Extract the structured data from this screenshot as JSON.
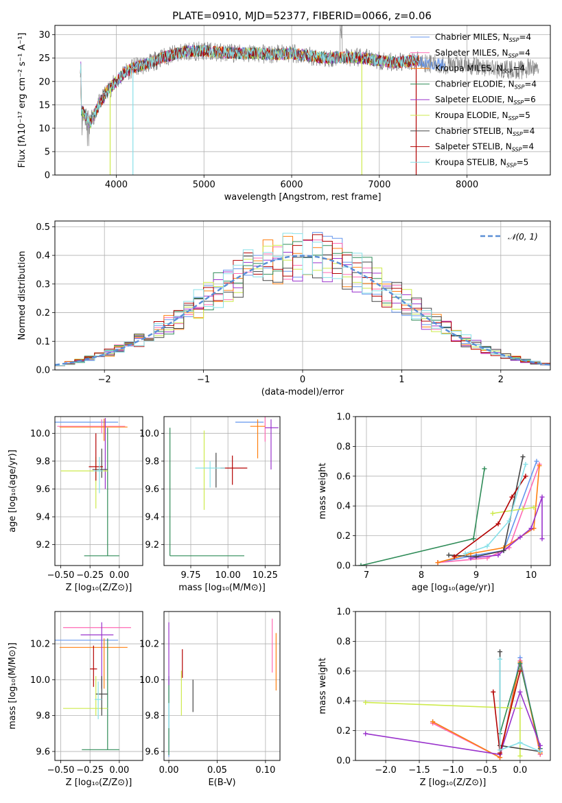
{
  "colors": [
    "#6495ed",
    "#ff69b4",
    "#ff7f0e",
    "#2e8b57",
    "#9932cc",
    "#cdea4b",
    "#444444",
    "#b30000",
    "#87e0e8"
  ],
  "chart_data": [
    {
      "id": "spectrum",
      "type": "line",
      "title": "PLATE=0910, MJD=52377, FIBERID=0066, z=0.06",
      "xlabel": "wavelength [Angstrom, rest frame]",
      "ylabel": "Flux [fλ10⁻¹⁷ erg cm⁻² s⁻¹ A⁻¹]",
      "xlim": [
        3300,
        8950
      ],
      "ylim": [
        0,
        32
      ],
      "xticks": [
        4000,
        5000,
        6000,
        7000,
        8000
      ],
      "yticks": [
        0,
        5,
        10,
        15,
        20,
        25,
        30
      ],
      "legend_position": "top-right",
      "data_color": "#808080",
      "data": {
        "x": [
          3600,
          3700,
          3800,
          3900,
          4000,
          4100,
          4200,
          4300,
          4400,
          4500,
          4600,
          4700,
          4800,
          4900,
          5000,
          5200,
          5400,
          5600,
          5800,
          6000,
          6200,
          6400,
          6600,
          6800,
          7000,
          7200,
          7400,
          7600,
          7800,
          8000,
          8200,
          8400,
          8600,
          8800
        ],
        "y": [
          14,
          11,
          15,
          18,
          20,
          22,
          23,
          23.5,
          24,
          25,
          25.5,
          26,
          26.5,
          26.5,
          26.5,
          26.2,
          26,
          26,
          25.8,
          26,
          25.5,
          25,
          25.2,
          25,
          24.5,
          24,
          24.5,
          23.8,
          23.5,
          23.5,
          23,
          22.5,
          22.5,
          23
        ]
      },
      "series": [
        {
          "name": "Chabrier MILES, N<sub>SSP</sub>=4",
          "label": "Chabrier MILES, N",
          "sub": "SSP",
          "suffix": "=4"
        },
        {
          "name": "Salpeter MILES, N<sub>SSP</sub>=4",
          "label": "Salpeter MILES, N",
          "sub": "SSP",
          "suffix": "=4"
        },
        {
          "name": "Kroupa MILES, N<sub>SSP</sub>=4",
          "label": "Kroupa MILES, N",
          "sub": "SSP",
          "suffix": "=4"
        },
        {
          "name": "Chabrier ELODIE, N<sub>SSP</sub>=4",
          "label": "Chabrier ELODIE, N",
          "sub": "SSP",
          "suffix": "=4"
        },
        {
          "name": "Salpeter ELODIE, N<sub>SSP</sub>=6",
          "label": "Salpeter ELODIE, N",
          "sub": "SSP",
          "suffix": "=6"
        },
        {
          "name": "Kroupa ELODIE, N<sub>SSP</sub>=5",
          "label": "Kroupa ELODIE, N",
          "sub": "SSP",
          "suffix": "=5"
        },
        {
          "name": "Chabrier STELIB, N<sub>SSP</sub>=4",
          "label": "Chabrier STELIB, N",
          "sub": "SSP",
          "suffix": "=4"
        },
        {
          "name": "Salpeter STELIB, N<sub>SSP</sub>=4",
          "label": "Salpeter STELIB, N",
          "sub": "SSP",
          "suffix": "=4"
        },
        {
          "name": "Kroupa STELIB, N<sub>SSP</sub>=5",
          "label": "Kroupa STELIB, N",
          "sub": "SSP",
          "suffix": "=5"
        }
      ],
      "sharp_drops": [
        {
          "x": 3930,
          "series": 5
        },
        {
          "x": 4190,
          "series": 8
        },
        {
          "x": 6800,
          "series": 5
        },
        {
          "x": 7420,
          "series": 7
        }
      ]
    },
    {
      "id": "residuals",
      "type": "histogram",
      "xlabel": "(data-model)/error",
      "ylabel": "Normed distribution",
      "xlim": [
        -2.5,
        2.5
      ],
      "ylim": [
        0,
        0.52
      ],
      "xticks": [
        -2,
        -1,
        0,
        1,
        2
      ],
      "yticks": [
        0.0,
        0.1,
        0.2,
        0.3,
        0.4,
        0.5
      ],
      "legend": "𝒩(0, 1)",
      "normal_color": "#5b8fd6",
      "bin_width": 0.1,
      "bin_start": -2.5
    },
    {
      "id": "age_vs_Z",
      "type": "errorbar",
      "xlabel": "Z [log₁₀(Z/Z⊙)]",
      "ylabel": "age  [log₁₀(age/yr)]",
      "xlim": [
        -0.55,
        0.2
      ],
      "ylim": [
        9.05,
        10.12
      ],
      "xticks": [
        -0.5,
        -0.25,
        0.0
      ],
      "xticklabels": [
        "−0.50",
        "−0.25",
        "0.00"
      ],
      "yticks": [
        9.2,
        9.4,
        9.6,
        9.8,
        10.0
      ],
      "points": [
        {
          "x": -0.15,
          "y": 10.08,
          "xerr": [
            0.5,
            0.14
          ],
          "yerr": [
            0.0,
            0.0
          ]
        },
        {
          "x": -0.15,
          "y": 10.05,
          "xerr": [
            0.38,
            0.2
          ],
          "yerr": [
            0.05,
            0.05
          ]
        },
        {
          "x": -0.13,
          "y": 10.045,
          "xerr": [
            0.38,
            0.2
          ],
          "yerr": [
            0.1,
            0.06
          ]
        },
        {
          "x": -0.1,
          "y": 9.12,
          "xerr": [
            0.2,
            0.1
          ],
          "yerr": [
            0.0,
            0.92
          ]
        },
        {
          "x": -0.12,
          "y": 9.75,
          "xerr": [
            0.0,
            0.0
          ],
          "yerr": [
            0.15,
            0.36
          ]
        },
        {
          "x": -0.2,
          "y": 9.73,
          "xerr": [
            0.3,
            0.1
          ],
          "yerr": [
            0.27,
            0.1
          ]
        },
        {
          "x": -0.15,
          "y": 9.74,
          "xerr": [
            0.08,
            0.05
          ],
          "yerr": [
            0.06,
            0.15
          ]
        },
        {
          "x": -0.2,
          "y": 9.76,
          "xerr": [
            0.06,
            0.06
          ],
          "yerr": [
            0.1,
            0.24
          ]
        },
        {
          "x": -0.17,
          "y": 9.73,
          "xerr": [
            0.05,
            0.03
          ],
          "yerr": [
            0.16,
            0.1
          ]
        }
      ]
    },
    {
      "id": "age_vs_mass",
      "type": "errorbar",
      "xlabel": "mass [log₁₀(M/M⊙)]",
      "xlim": [
        9.57,
        10.35
      ],
      "ylim": [
        9.05,
        10.12
      ],
      "xticks": [
        9.75,
        10.0,
        10.25
      ],
      "xticklabels": [
        "9.75",
        "10.00",
        "10.25"
      ],
      "yticks": [
        9.2,
        9.4,
        9.6,
        9.8,
        10.0
      ],
      "points": [
        {
          "x": 10.17,
          "y": 10.08,
          "xerr": [
            0.12,
            0.07
          ],
          "yerr": [
            0.0,
            0.0
          ]
        },
        {
          "x": 10.25,
          "y": 10.06,
          "xerr": [
            0.0,
            0.0
          ],
          "yerr": [
            0.12,
            0.32
          ]
        },
        {
          "x": 10.2,
          "y": 10.05,
          "xerr": [
            0.05,
            0.05
          ],
          "yerr": [
            0.23,
            0.05
          ]
        },
        {
          "x": 9.61,
          "y": 9.12,
          "xerr": [
            0.0,
            0.5
          ],
          "yerr": [
            0.0,
            0.92
          ]
        },
        {
          "x": 10.29,
          "y": 10.04,
          "xerr": [
            0.04,
            0.05
          ],
          "yerr": [
            0.3,
            0.06
          ]
        },
        {
          "x": 9.84,
          "y": 9.73,
          "xerr": [
            0.0,
            0.0
          ],
          "yerr": [
            0.28,
            0.29
          ]
        },
        {
          "x": 9.92,
          "y": 9.75,
          "xerr": [
            0.0,
            0.0
          ],
          "yerr": [
            0.14,
            0.11
          ]
        },
        {
          "x": 10.03,
          "y": 9.75,
          "xerr": [
            0.08,
            0.1
          ],
          "yerr": [
            0.12,
            0.09
          ]
        },
        {
          "x": 9.88,
          "y": 9.75,
          "xerr": [
            0.1,
            0.1
          ],
          "yerr": [
            0.14,
            0.05
          ]
        }
      ]
    },
    {
      "id": "weight_vs_age",
      "type": "line",
      "xlabel": "age  [log₁₀(age/yr)]",
      "ylabel": "mass weight",
      "xlim": [
        6.8,
        10.35
      ],
      "ylim": [
        0,
        1.0
      ],
      "xticks": [
        7,
        8,
        9,
        10
      ],
      "yticks": [
        0.0,
        0.2,
        0.4,
        0.6,
        0.8,
        1.0
      ],
      "series": [
        {
          "x": [
            8.3,
            9.0,
            9.5,
            10.1
          ],
          "y": [
            0.02,
            0.07,
            0.1,
            0.7
          ]
        },
        {
          "x": [
            8.3,
            9.2,
            9.6,
            10.15
          ],
          "y": [
            0.02,
            0.05,
            0.12,
            0.68
          ]
        },
        {
          "x": [
            8.3,
            8.9,
            9.5,
            10.05,
            10.15
          ],
          "y": [
            0.02,
            0.08,
            0.12,
            0.25,
            0.67
          ]
        },
        {
          "x": [
            6.9,
            8.95,
            9.15
          ],
          "y": [
            0.0,
            0.18,
            0.65
          ]
        },
        {
          "x": [
            8.9,
            9.4,
            9.8,
            10.0,
            10.2,
            10.2
          ],
          "y": [
            0.05,
            0.07,
            0.19,
            0.25,
            0.46,
            0.18
          ]
        },
        {
          "x": [
            9.3,
            9.85,
            10.05
          ],
          "y": [
            0.35,
            0.38,
            0.39
          ]
        },
        {
          "x": [
            8.5,
            9.0,
            9.5,
            9.85
          ],
          "y": [
            0.07,
            0.06,
            0.1,
            0.73
          ]
        },
        {
          "x": [
            8.6,
            9.4,
            9.65,
            9.9
          ],
          "y": [
            0.06,
            0.28,
            0.46,
            0.6
          ]
        },
        {
          "x": [
            8.8,
            9.2,
            9.6,
            9.9
          ],
          "y": [
            0.08,
            0.13,
            0.3,
            0.68
          ]
        }
      ]
    },
    {
      "id": "mass_vs_Z",
      "type": "errorbar",
      "xlabel": "Z [log₁₀(Z/Z⊙)]",
      "ylabel": "mass [log₁₀(M/M⊙)]",
      "xlim": [
        -0.55,
        0.2
      ],
      "ylim": [
        9.55,
        10.38
      ],
      "xticks": [
        -0.5,
        -0.25,
        0.0
      ],
      "xticklabels": [
        "−0.50",
        "−0.25",
        "0.00"
      ],
      "yticks": [
        9.6,
        9.8,
        10.0,
        10.2
      ],
      "points": [
        {
          "x": -0.15,
          "y": 10.22,
          "xerr": [
            0.5,
            0.14
          ],
          "yerr": [
            0.0,
            0.0
          ]
        },
        {
          "x": -0.1,
          "y": 10.29,
          "xerr": [
            0.38,
            0.2
          ],
          "yerr": [
            0.0,
            0.0
          ]
        },
        {
          "x": -0.13,
          "y": 10.18,
          "xerr": [
            0.38,
            0.2
          ],
          "yerr": [
            0.23,
            0.05
          ]
        },
        {
          "x": -0.1,
          "y": 9.61,
          "xerr": [
            0.22,
            0.1
          ],
          "yerr": [
            0.0,
            0.62
          ]
        },
        {
          "x": -0.15,
          "y": 10.25,
          "xerr": [
            0.18,
            0.1
          ],
          "yerr": [
            0.3,
            0.07
          ]
        },
        {
          "x": -0.2,
          "y": 9.84,
          "xerr": [
            0.28,
            0.1
          ],
          "yerr": [
            0.04,
            0.18
          ]
        },
        {
          "x": -0.15,
          "y": 9.92,
          "xerr": [
            0.05,
            0.05
          ],
          "yerr": [
            0.12,
            0.1
          ]
        },
        {
          "x": -0.22,
          "y": 10.06,
          "xerr": [
            0.03,
            0.03
          ],
          "yerr": [
            0.1,
            0.13
          ]
        },
        {
          "x": -0.18,
          "y": 9.89,
          "xerr": [
            0.03,
            0.03
          ],
          "yerr": [
            0.11,
            0.1
          ]
        }
      ]
    },
    {
      "id": "mass_vs_EBV",
      "type": "errorbar",
      "xlabel": "E(B-V)",
      "xlim": [
        -0.005,
        0.115
      ],
      "ylim": [
        9.55,
        10.38
      ],
      "xticks": [
        0.0,
        0.05,
        0.1
      ],
      "xticklabels": [
        "0.00",
        "0.05",
        "0.10"
      ],
      "yticks": [
        9.6,
        9.8,
        10.0,
        10.2
      ],
      "points": [
        {
          "x": 0.0,
          "y": 9.79,
          "xerr": [
            0,
            0
          ],
          "yerr": [
            0.22,
            0.23
          ]
        },
        {
          "x": 0.107,
          "y": 10.2,
          "xerr": [
            0,
            0
          ],
          "yerr": [
            0.16,
            0.14
          ]
        },
        {
          "x": 0.111,
          "y": 10.1,
          "xerr": [
            0,
            0
          ],
          "yerr": [
            0.16,
            0.16
          ]
        },
        {
          "x": 0.0,
          "y": 9.79,
          "xerr": [
            0,
            0
          ],
          "yerr": [
            0.21,
            0.23
          ]
        },
        {
          "x": 0.0,
          "y": 10.13,
          "xerr": [
            0,
            0
          ],
          "yerr": [
            0.16,
            0.19
          ]
        },
        {
          "x": 0.013,
          "y": 9.92,
          "xerr": [
            0,
            0
          ],
          "yerr": [
            0.12,
            0.13
          ]
        },
        {
          "x": 0.025,
          "y": 9.92,
          "xerr": [
            0,
            0
          ],
          "yerr": [
            0.1,
            0.08
          ]
        },
        {
          "x": 0.014,
          "y": 10.07,
          "xerr": [
            0,
            0
          ],
          "yerr": [
            0.06,
            0.1
          ]
        },
        {
          "x": 0.0,
          "y": 9.79,
          "xerr": [
            0,
            0
          ],
          "yerr": [
            0.06,
            0.08
          ]
        }
      ]
    },
    {
      "id": "weight_vs_Z",
      "type": "line",
      "xlabel": "Z [log₁₀(Z/Z⊙)]",
      "ylabel": "mass weight",
      "xlim": [
        -2.45,
        0.45
      ],
      "ylim": [
        0,
        1.0
      ],
      "xticks": [
        -2.0,
        -1.5,
        -1.0,
        -0.5,
        0.0
      ],
      "xticklabels": [
        "−2.0",
        "−1.5",
        "−1.0",
        "−0.5",
        "0.0"
      ],
      "yticks": [
        0.0,
        0.2,
        0.4,
        0.6,
        0.8,
        1.0
      ],
      "series": [
        {
          "x": [
            -1.3,
            -0.3,
            0.0,
            0.3
          ],
          "y": [
            0.26,
            0.02,
            0.69,
            0.04
          ]
        },
        {
          "x": [
            -1.3,
            -0.3,
            0.0,
            0.3
          ],
          "y": [
            0.25,
            0.02,
            0.67,
            0.04
          ]
        },
        {
          "x": [
            -1.3,
            -0.3,
            0.0,
            0.3
          ],
          "y": [
            0.26,
            0.02,
            0.66,
            0.05
          ]
        },
        {
          "x": [
            -0.3,
            0.0,
            0.3
          ],
          "y": [
            0.18,
            0.65,
            0.08
          ]
        },
        {
          "x": [
            -2.3,
            -0.3,
            0.0,
            0.3,
            0.3
          ],
          "y": [
            0.18,
            0.04,
            0.46,
            0.1,
            0.06
          ]
        },
        {
          "x": [
            -2.3,
            0.0,
            0.0
          ],
          "y": [
            0.39,
            0.35,
            0.03
          ]
        },
        {
          "x": [
            -0.3,
            -0.3,
            0.3
          ],
          "y": [
            0.73,
            0.1,
            0.06
          ]
        },
        {
          "x": [
            -0.4,
            -0.3,
            0.0
          ],
          "y": [
            0.46,
            0.05,
            0.6
          ]
        },
        {
          "x": [
            -0.3,
            -0.3,
            0.0,
            0.3
          ],
          "y": [
            0.68,
            0.07,
            0.12,
            0.06
          ]
        }
      ]
    }
  ]
}
